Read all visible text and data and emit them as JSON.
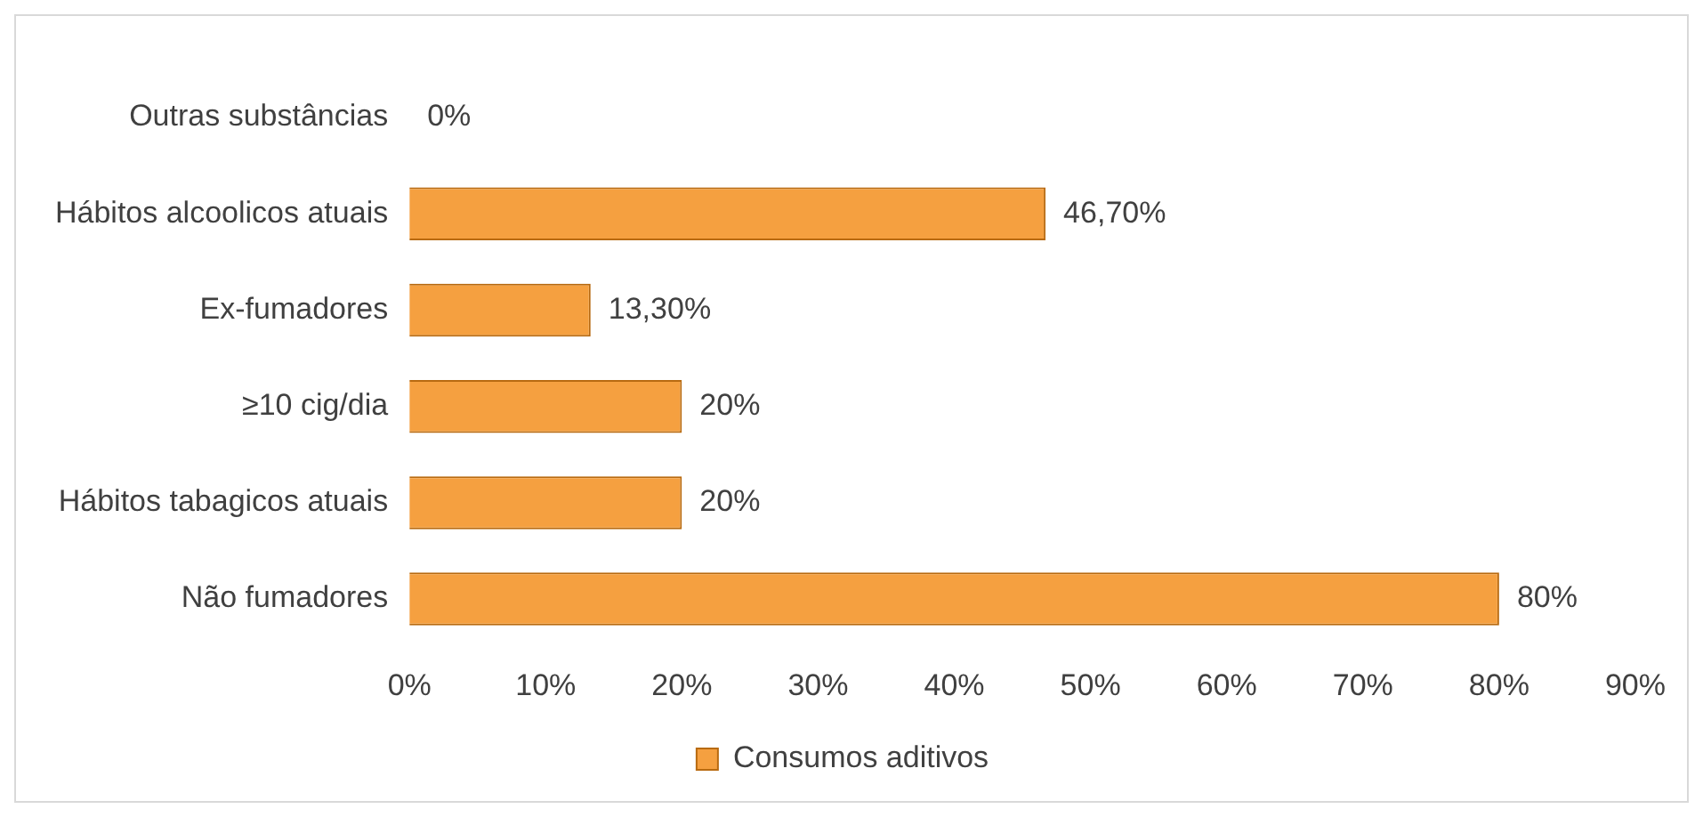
{
  "chart_data": {
    "type": "bar",
    "orientation": "horizontal",
    "categories": [
      "Outras substâncias",
      "Hábitos alcoolicos atuais",
      "Ex-fumadores",
      "≥10 cig/dia",
      "Hábitos tabagicos atuais",
      "Não fumadores"
    ],
    "series": [
      {
        "name": "Consumos aditivos",
        "color": "#f5a040",
        "values": [
          0,
          46.7,
          13.3,
          20,
          20,
          80
        ],
        "value_labels": [
          "0%",
          "46,70%",
          "13,30%",
          "20%",
          "20%",
          "80%"
        ]
      }
    ],
    "xlim": [
      0,
      90
    ],
    "xticks": [
      {
        "value": 0,
        "label": "0%"
      },
      {
        "value": 10,
        "label": "10%"
      },
      {
        "value": 20,
        "label": "20%"
      },
      {
        "value": 30,
        "label": "30%"
      },
      {
        "value": 40,
        "label": "40%"
      },
      {
        "value": 50,
        "label": "50%"
      },
      {
        "value": 60,
        "label": "60%"
      },
      {
        "value": 70,
        "label": "70%"
      },
      {
        "value": 80,
        "label": "80%"
      },
      {
        "value": 90,
        "label": "90%"
      }
    ],
    "grid": false,
    "legend": "bottom"
  }
}
